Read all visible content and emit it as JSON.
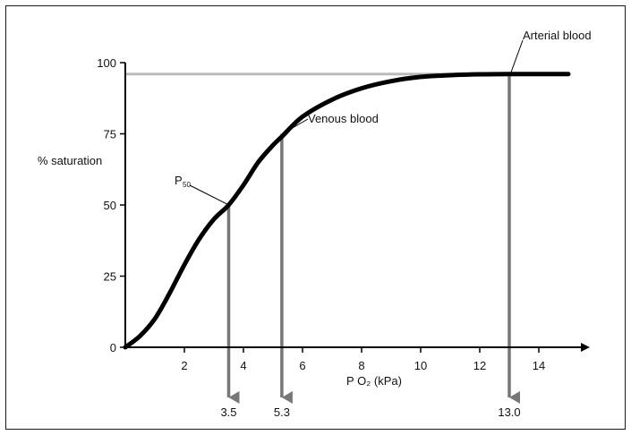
{
  "chart_data": {
    "type": "line",
    "xlabel": "P O₂ (kPa)",
    "ylabel": "% saturation",
    "xlim": [
      0,
      15
    ],
    "ylim": [
      0,
      100
    ],
    "x_ticks": [
      2,
      4,
      6,
      8,
      10,
      12,
      14
    ],
    "y_ticks": [
      0,
      25,
      50,
      75,
      100
    ],
    "grid": false,
    "series": [
      {
        "x": [
          0,
          0.5,
          1,
          1.5,
          2,
          2.5,
          3,
          3.5,
          4,
          4.5,
          5,
          5.3,
          6,
          7,
          8,
          9,
          10,
          11,
          12,
          13,
          14,
          15
        ],
        "y": [
          0,
          4,
          10,
          19,
          29,
          38,
          45,
          50,
          57,
          65,
          71,
          74,
          81,
          87,
          91,
          93.5,
          95,
          95.6,
          95.9,
          96,
          96,
          96
        ]
      }
    ],
    "reference_line": {
      "y": 96
    },
    "annotations": [
      {
        "label_main": "P",
        "label_sub": "50",
        "x": 3.5,
        "y": 50,
        "marker": "3.5"
      },
      {
        "label": "Venous blood",
        "x": 5.3,
        "y": 75,
        "marker": "5.3"
      },
      {
        "label": "Arterial blood",
        "x": 13.0,
        "y": 96,
        "marker": "13.0"
      }
    ],
    "colors": {
      "curve": "#000000",
      "drop_arrows": "#777777",
      "reference": "#bbbbbb",
      "axes": "#000000"
    }
  }
}
